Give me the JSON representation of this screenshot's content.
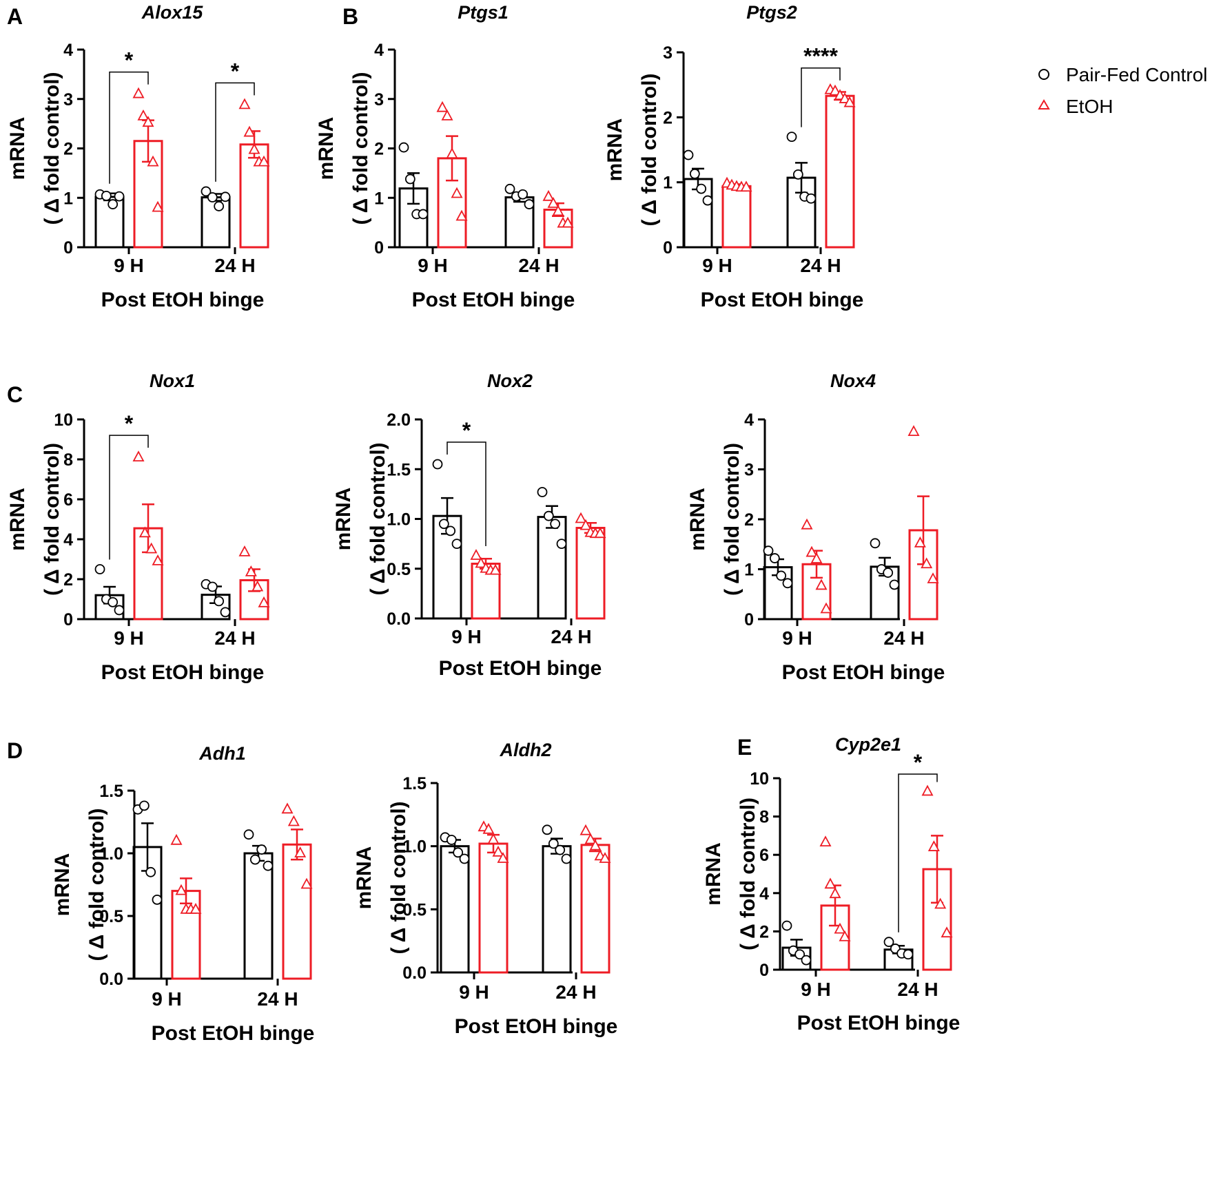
{
  "figure": {
    "legend": {
      "control": {
        "label": "Pair-Fed Control",
        "color": "#000000"
      },
      "etoh": {
        "label": "EtOH",
        "color": "#ee1c25"
      }
    },
    "panel_letters": [
      "A",
      "B",
      "C",
      "D",
      "E"
    ]
  },
  "chart_data": [
    {
      "type": "bar",
      "title": "Alox15",
      "panel": "A",
      "ylabel_line1": "mRNA",
      "ylabel_line2": "( Δ fold control)",
      "xlabel": "Post EtOH binge",
      "categories": [
        "9 H",
        "24 H"
      ],
      "ylim": [
        0,
        4
      ],
      "yticks": [
        "0",
        "1",
        "2",
        "3",
        "4"
      ],
      "series": [
        {
          "name": "Pair-Fed Control",
          "values": [
            1.02,
            1.01
          ],
          "sem": [
            0.07,
            0.07
          ],
          "points": [
            [
              1.07,
              1.04,
              0.87,
              1.03
            ],
            [
              1.13,
              1.01,
              0.83,
              1.02
            ]
          ]
        },
        {
          "name": "EtOH",
          "values": [
            2.15,
            2.08
          ],
          "sem": [
            0.42,
            0.27
          ],
          "points": [
            [
              3.1,
              2.65,
              2.52,
              1.72,
              0.8
            ],
            [
              2.88,
              2.32,
              1.97,
              1.72,
              1.72
            ]
          ]
        }
      ],
      "significance": [
        {
          "category": "9 H",
          "label": "*"
        },
        {
          "category": "24 H",
          "label": "*"
        }
      ]
    },
    {
      "type": "bar",
      "title": "Ptgs1",
      "panel": "B",
      "ylabel_line1": "mRNA",
      "ylabel_line2": "( Δ fold control)",
      "xlabel": "Post EtOH binge",
      "categories": [
        "9 H",
        "24 H"
      ],
      "ylim": [
        0,
        4
      ],
      "yticks": [
        "0",
        "1",
        "2",
        "3",
        "4"
      ],
      "series": [
        {
          "name": "Pair-Fed Control",
          "values": [
            1.19,
            1.01
          ],
          "sem": [
            0.31,
            0.09
          ],
          "points": [
            [
              2.02,
              1.38,
              0.67,
              0.67
            ],
            [
              1.18,
              1.03,
              1.07,
              0.87
            ]
          ]
        },
        {
          "name": "EtOH",
          "values": [
            1.8,
            0.76
          ],
          "sem": [
            0.45,
            0.13
          ],
          "points": [
            [
              2.82,
              2.65,
              1.88,
              1.08,
              0.62
            ],
            [
              1.02,
              0.88,
              0.72,
              0.48,
              0.48
            ]
          ]
        }
      ],
      "significance": []
    },
    {
      "type": "bar",
      "title": "Ptgs2",
      "panel": "",
      "ylabel_line1": "mRNA",
      "ylabel_line2": "( Δ fold control)",
      "xlabel": "Post EtOH binge",
      "categories": [
        "9 H",
        "24 H"
      ],
      "ylim": [
        0,
        3
      ],
      "yticks": [
        "0",
        "1",
        "2",
        "3"
      ],
      "series": [
        {
          "name": "Pair-Fed Control",
          "values": [
            1.05,
            1.07
          ],
          "sem": [
            0.16,
            0.23
          ],
          "points": [
            [
              1.42,
              1.13,
              0.9,
              0.72
            ],
            [
              1.7,
              1.12,
              0.78,
              0.75
            ]
          ]
        },
        {
          "name": "EtOH",
          "values": [
            0.94,
            2.33
          ],
          "sem": [
            0.03,
            0.06
          ],
          "points": [
            [
              0.98,
              0.95,
              0.93,
              0.92,
              0.92
            ],
            [
              2.42,
              2.4,
              2.33,
              2.28,
              2.22
            ]
          ]
        }
      ],
      "significance": [
        {
          "category": "24 H",
          "label": "****"
        }
      ]
    },
    {
      "type": "bar",
      "title": "Nox1",
      "panel": "C",
      "ylabel_line1": "mRNA",
      "ylabel_line2": "( Δ fold control)",
      "xlabel": "Post EtOH binge",
      "categories": [
        "9 H",
        "24 H"
      ],
      "ylim": [
        0,
        10
      ],
      "yticks": [
        "0",
        "2",
        "4",
        "6",
        "8",
        "10"
      ],
      "series": [
        {
          "name": "Pair-Fed Control",
          "values": [
            1.2,
            1.22
          ],
          "sem": [
            0.42,
            0.42
          ],
          "points": [
            [
              2.5,
              1.0,
              0.85,
              0.45
            ],
            [
              1.75,
              1.62,
              0.9,
              0.35
            ]
          ]
        },
        {
          "name": "EtOH",
          "values": [
            4.55,
            1.95
          ],
          "sem": [
            1.2,
            0.55
          ],
          "points": [
            [
              8.1,
              4.3,
              3.5,
              2.9
            ],
            [
              3.35,
              2.35,
              1.6,
              0.8
            ]
          ]
        }
      ],
      "significance": [
        {
          "category": "9 H",
          "label": "*"
        }
      ]
    },
    {
      "type": "bar",
      "title": "Nox2",
      "panel": "",
      "ylabel_line1": "mRNA",
      "ylabel_line2": "( Δ fold control)",
      "xlabel": "Post EtOH binge",
      "categories": [
        "9 H",
        "24 H"
      ],
      "ylim": [
        0,
        2
      ],
      "yticks": [
        "0.0",
        "0.5",
        "1.0",
        "1.5",
        "2.0"
      ],
      "series": [
        {
          "name": "Pair-Fed Control",
          "values": [
            1.03,
            1.02
          ],
          "sem": [
            0.18,
            0.11
          ],
          "points": [
            [
              1.55,
              0.95,
              0.88,
              0.75
            ],
            [
              1.27,
              1.03,
              0.95,
              0.75
            ]
          ]
        },
        {
          "name": "EtOH",
          "values": [
            0.55,
            0.91
          ],
          "sem": [
            0.05,
            0.05
          ],
          "points": [
            [
              0.63,
              0.55,
              0.5,
              0.48,
              0.48
            ],
            [
              1.0,
              0.93,
              0.86,
              0.85,
              0.85
            ]
          ]
        }
      ],
      "significance": [
        {
          "category": "9 H",
          "label": "*"
        }
      ]
    },
    {
      "type": "bar",
      "title": "Nox4",
      "panel": "",
      "ylabel_line1": "mRNA",
      "ylabel_line2": "( Δ fold control)",
      "xlabel": "Post EtOH binge",
      "categories": [
        "9 H",
        "24 H"
      ],
      "ylim": [
        0,
        4
      ],
      "yticks": [
        "0",
        "1",
        "2",
        "3",
        "4"
      ],
      "series": [
        {
          "name": "Pair-Fed Control",
          "values": [
            1.04,
            1.05
          ],
          "sem": [
            0.16,
            0.18
          ],
          "points": [
            [
              1.37,
              1.22,
              0.87,
              0.72
            ],
            [
              1.52,
              1.0,
              0.93,
              0.69
            ]
          ]
        },
        {
          "name": "EtOH",
          "values": [
            1.1,
            1.78
          ],
          "sem": [
            0.27,
            0.68
          ],
          "points": [
            [
              1.88,
              1.33,
              1.2,
              0.67,
              0.2
            ],
            [
              3.75,
              1.52,
              1.1,
              0.8
            ]
          ]
        }
      ],
      "significance": []
    },
    {
      "type": "bar",
      "title": "Adh1",
      "panel": "D",
      "ylabel_line1": "mRNA",
      "ylabel_line2": "( Δ fold control)",
      "xlabel": "Post EtOH binge",
      "categories": [
        "9 H",
        "24 H"
      ],
      "ylim": [
        0,
        1.5
      ],
      "yticks": [
        "0.0",
        "0.5",
        "1.0",
        "1.5"
      ],
      "series": [
        {
          "name": "Pair-Fed Control",
          "values": [
            1.05,
            1.0
          ],
          "sem": [
            0.19,
            0.06
          ],
          "points": [
            [
              1.35,
              1.38,
              0.85,
              0.63
            ],
            [
              1.15,
              0.95,
              1.03,
              0.9
            ]
          ]
        },
        {
          "name": "EtOH",
          "values": [
            0.7,
            1.07
          ],
          "sem": [
            0.1,
            0.12
          ],
          "points": [
            [
              1.1,
              0.7,
              0.55,
              0.55,
              0.55
            ],
            [
              1.35,
              1.25,
              1.0,
              0.75
            ]
          ]
        }
      ],
      "significance": []
    },
    {
      "type": "bar",
      "title": "Aldh2",
      "panel": "",
      "ylabel_line1": "mRNA",
      "ylabel_line2": "( Δ fold control)",
      "xlabel": "Post EtOH binge",
      "categories": [
        "9 H",
        "24 H"
      ],
      "ylim": [
        0,
        1.5
      ],
      "yticks": [
        "0.0",
        "0.5",
        "1.0",
        "1.5"
      ],
      "series": [
        {
          "name": "Pair-Fed Control",
          "values": [
            1.0,
            1.0
          ],
          "sem": [
            0.05,
            0.06
          ],
          "points": [
            [
              1.07,
              1.05,
              0.95,
              0.9
            ],
            [
              1.13,
              1.02,
              0.97,
              0.9
            ]
          ]
        },
        {
          "name": "EtOH",
          "values": [
            1.02,
            1.01
          ],
          "sem": [
            0.07,
            0.05
          ],
          "points": [
            [
              1.15,
              1.13,
              1.05,
              0.95,
              0.9
            ],
            [
              1.12,
              1.05,
              1.0,
              0.92,
              0.9
            ]
          ]
        }
      ],
      "significance": []
    },
    {
      "type": "bar",
      "title": "Cyp2e1",
      "panel": "E",
      "ylabel_line1": "mRNA",
      "ylabel_line2": "( Δ fold control)",
      "xlabel": "Post EtOH binge",
      "categories": [
        "9 H",
        "24 H"
      ],
      "ylim": [
        0,
        10
      ],
      "yticks": [
        "0",
        "2",
        "4",
        "6",
        "8",
        "10"
      ],
      "series": [
        {
          "name": "Pair-Fed Control",
          "values": [
            1.15,
            1.05
          ],
          "sem": [
            0.42,
            0.2
          ],
          "points": [
            [
              2.3,
              1.0,
              0.8,
              0.5
            ],
            [
              1.45,
              1.1,
              0.85,
              0.8
            ]
          ]
        },
        {
          "name": "EtOH",
          "values": [
            3.35,
            5.25
          ],
          "sem": [
            1.05,
            1.75
          ],
          "points": [
            [
              6.65,
              4.45,
              3.95,
              2.1,
              1.7
            ],
            [
              9.3,
              6.4,
              3.4,
              1.9
            ]
          ]
        }
      ],
      "significance": [
        {
          "category": "24 H",
          "label": "*"
        }
      ]
    }
  ]
}
